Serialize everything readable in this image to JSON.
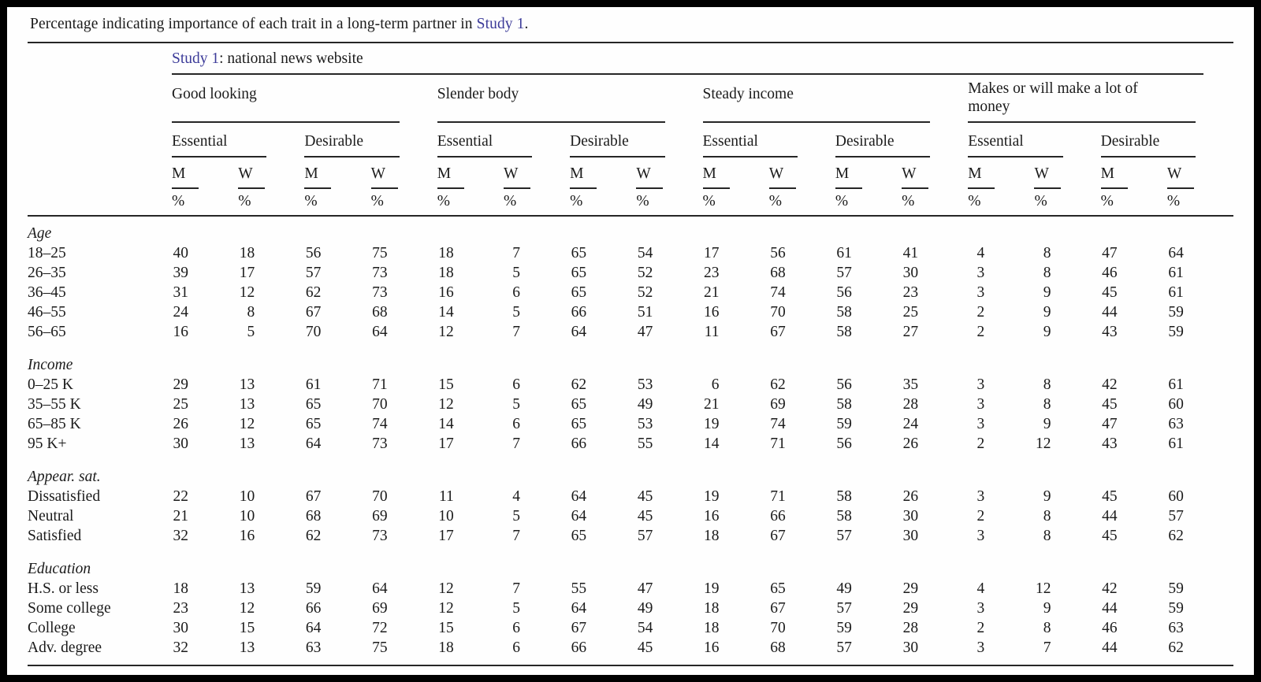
{
  "caption": {
    "prefix": "Percentage indicating importance of each trait in a long-term partner in ",
    "link": "Study 1",
    "suffix": "."
  },
  "table": {
    "study_header": {
      "link": "Study 1",
      "rest": ": national news website"
    },
    "trait_groups": [
      "Good looking",
      "Slender body",
      "Steady income",
      "Makes or will make a lot of money"
    ],
    "subgroups": [
      "Essential",
      "Desirable"
    ],
    "gender_cols": [
      "M",
      "W"
    ],
    "unit": "%",
    "sections": [
      {
        "label": "Age",
        "rows": [
          {
            "label": "18–25",
            "values": [
              40,
              18,
              56,
              75,
              18,
              7,
              65,
              54,
              17,
              56,
              61,
              41,
              4,
              8,
              47,
              64
            ]
          },
          {
            "label": "26–35",
            "values": [
              39,
              17,
              57,
              73,
              18,
              5,
              65,
              52,
              23,
              68,
              57,
              30,
              3,
              8,
              46,
              61
            ]
          },
          {
            "label": "36–45",
            "values": [
              31,
              12,
              62,
              73,
              16,
              6,
              65,
              52,
              21,
              74,
              56,
              23,
              3,
              9,
              45,
              61
            ]
          },
          {
            "label": "46–55",
            "values": [
              24,
              8,
              67,
              68,
              14,
              5,
              66,
              51,
              16,
              70,
              58,
              25,
              2,
              9,
              44,
              59
            ]
          },
          {
            "label": "56–65",
            "values": [
              16,
              5,
              70,
              64,
              12,
              7,
              64,
              47,
              11,
              67,
              58,
              27,
              2,
              9,
              43,
              59
            ]
          }
        ]
      },
      {
        "label": "Income",
        "rows": [
          {
            "label": "0–25 K",
            "values": [
              29,
              13,
              61,
              71,
              15,
              6,
              62,
              53,
              6,
              62,
              56,
              35,
              3,
              8,
              42,
              61
            ]
          },
          {
            "label": "35–55 K",
            "values": [
              25,
              13,
              65,
              70,
              12,
              5,
              65,
              49,
              21,
              69,
              58,
              28,
              3,
              8,
              45,
              60
            ]
          },
          {
            "label": "65–85 K",
            "values": [
              26,
              12,
              65,
              74,
              14,
              6,
              65,
              53,
              19,
              74,
              59,
              24,
              3,
              9,
              47,
              63
            ]
          },
          {
            "label": "95 K+",
            "values": [
              30,
              13,
              64,
              73,
              17,
              7,
              66,
              55,
              14,
              71,
              56,
              26,
              2,
              12,
              43,
              61
            ]
          }
        ]
      },
      {
        "label": "Appear. sat.",
        "rows": [
          {
            "label": "Dissatisfied",
            "values": [
              22,
              10,
              67,
              70,
              11,
              4,
              64,
              45,
              19,
              71,
              58,
              26,
              3,
              9,
              45,
              60
            ]
          },
          {
            "label": "Neutral",
            "values": [
              21,
              10,
              68,
              69,
              10,
              5,
              64,
              45,
              16,
              66,
              58,
              30,
              2,
              8,
              44,
              57
            ]
          },
          {
            "label": "Satisfied",
            "values": [
              32,
              16,
              62,
              73,
              17,
              7,
              65,
              57,
              18,
              67,
              57,
              30,
              3,
              8,
              45,
              62
            ]
          }
        ]
      },
      {
        "label": "Education",
        "rows": [
          {
            "label": "H.S. or less",
            "values": [
              18,
              13,
              59,
              64,
              12,
              7,
              55,
              47,
              19,
              65,
              49,
              29,
              4,
              12,
              42,
              59
            ]
          },
          {
            "label": "Some college",
            "values": [
              23,
              12,
              66,
              69,
              12,
              5,
              64,
              49,
              18,
              67,
              57,
              29,
              3,
              9,
              44,
              59
            ]
          },
          {
            "label": "College",
            "values": [
              30,
              15,
              64,
              72,
              15,
              6,
              67,
              54,
              18,
              70,
              59,
              28,
              2,
              8,
              46,
              63
            ]
          },
          {
            "label": "Adv. degree",
            "values": [
              32,
              13,
              63,
              75,
              18,
              6,
              66,
              45,
              16,
              68,
              57,
              30,
              3,
              7,
              44,
              62
            ]
          }
        ]
      }
    ]
  },
  "colors": {
    "link": "#3c3b99",
    "text": "#1b1b1b",
    "rule": "#262626",
    "background": "#fefefe",
    "frame": "#000000"
  }
}
